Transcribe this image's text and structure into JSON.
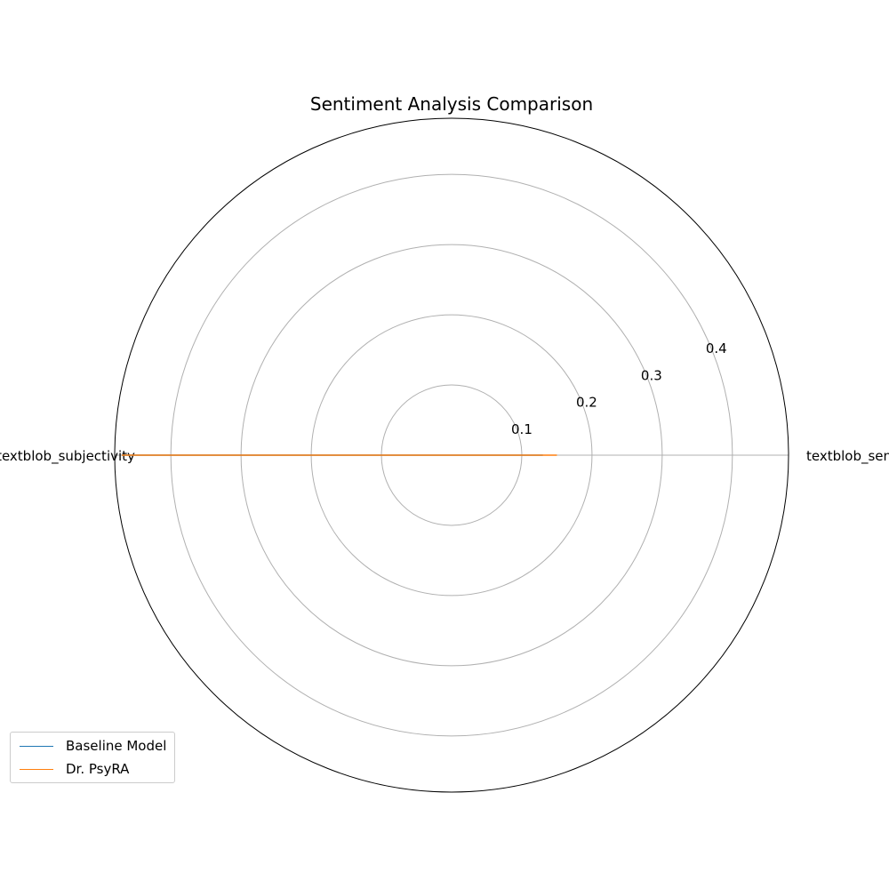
{
  "chart_data": {
    "type": "radar",
    "title": "Sentiment Analysis Comparison",
    "categories": [
      "textblob_sentiment",
      "textblob_subjectivity"
    ],
    "r_ticks": [
      0.1,
      0.2,
      0.3,
      0.4
    ],
    "r_max": 0.48,
    "grid": true,
    "legend_position": "lower-left",
    "series": [
      {
        "name": "Baseline Model",
        "values": [
          0.13,
          0.47
        ],
        "color": "#1f77b4"
      },
      {
        "name": "Dr. PsyRA",
        "values": [
          0.15,
          0.47
        ],
        "color": "#ff7f0e"
      }
    ]
  }
}
